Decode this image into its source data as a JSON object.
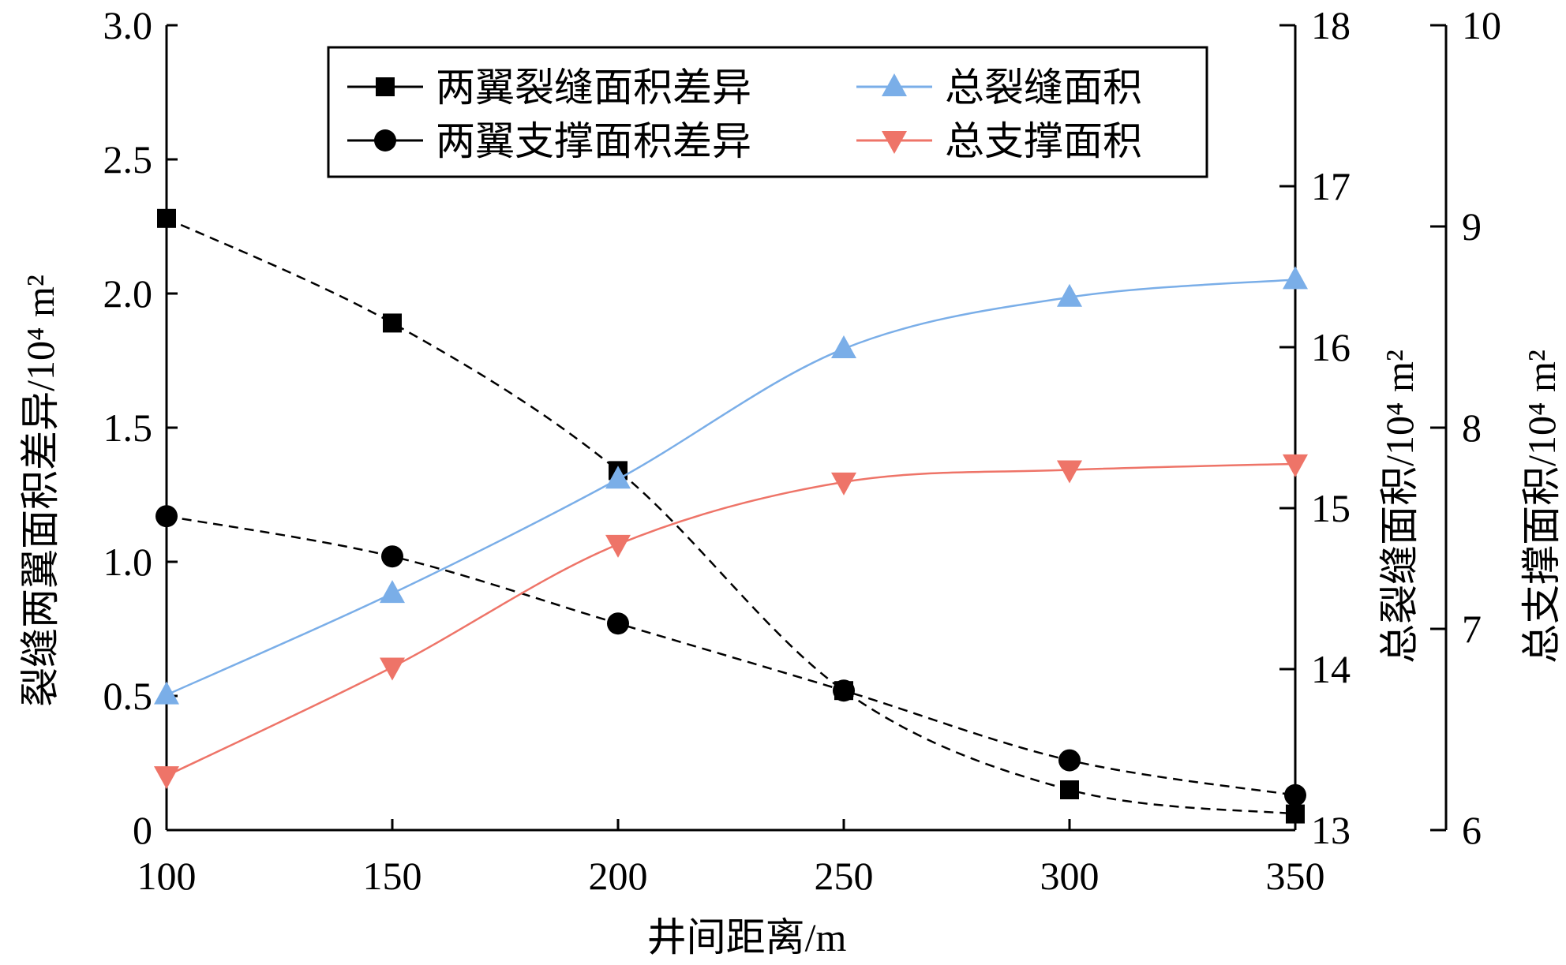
{
  "chart_data": {
    "type": "line",
    "xlabel": "井间距离/m",
    "x": [
      100,
      150,
      200,
      250,
      300,
      350
    ],
    "xlim": [
      100,
      350
    ],
    "xticks": [
      "100",
      "150",
      "200",
      "250",
      "300",
      "350"
    ],
    "axes": {
      "left": {
        "label": "裂缝两翼面积差异/10⁴ m²",
        "ylim": [
          0,
          3.0
        ],
        "ticks": [
          "0",
          "0.5",
          "1.0",
          "1.5",
          "2.0",
          "2.5",
          "3.0"
        ]
      },
      "right1": {
        "label": "总裂缝面积/10⁴ m²",
        "ylim": [
          13,
          18
        ],
        "ticks": [
          "13",
          "14",
          "15",
          "16",
          "17",
          "18"
        ]
      },
      "right2": {
        "label": "总支撑面积/10⁴ m²",
        "ylim": [
          6,
          10
        ],
        "ticks": [
          "6",
          "7",
          "8",
          "9",
          "10"
        ]
      }
    },
    "series": [
      {
        "name": "两翼裂缝面积差异",
        "axis": "left",
        "marker": "square",
        "color": "#000000",
        "dash": true,
        "values": [
          2.28,
          1.89,
          1.34,
          0.52,
          0.15,
          0.06
        ]
      },
      {
        "name": "两翼支撑面积差异",
        "axis": "left",
        "marker": "circle",
        "color": "#000000",
        "dash": true,
        "values": [
          1.17,
          1.02,
          0.77,
          0.52,
          0.26,
          0.13
        ]
      },
      {
        "name": "总裂缝面积",
        "axis": "right1",
        "marker": "triangle-up",
        "color": "#7aaee8",
        "dash": false,
        "values": [
          13.84,
          14.47,
          15.18,
          15.99,
          16.31,
          16.42
        ]
      },
      {
        "name": "总支撑面积",
        "axis": "right2",
        "marker": "triangle-down",
        "color": "#ee7468",
        "dash": false,
        "values": [
          6.27,
          6.81,
          7.42,
          7.73,
          7.79,
          7.82
        ]
      }
    ],
    "legend": "top-center",
    "grid": false
  }
}
